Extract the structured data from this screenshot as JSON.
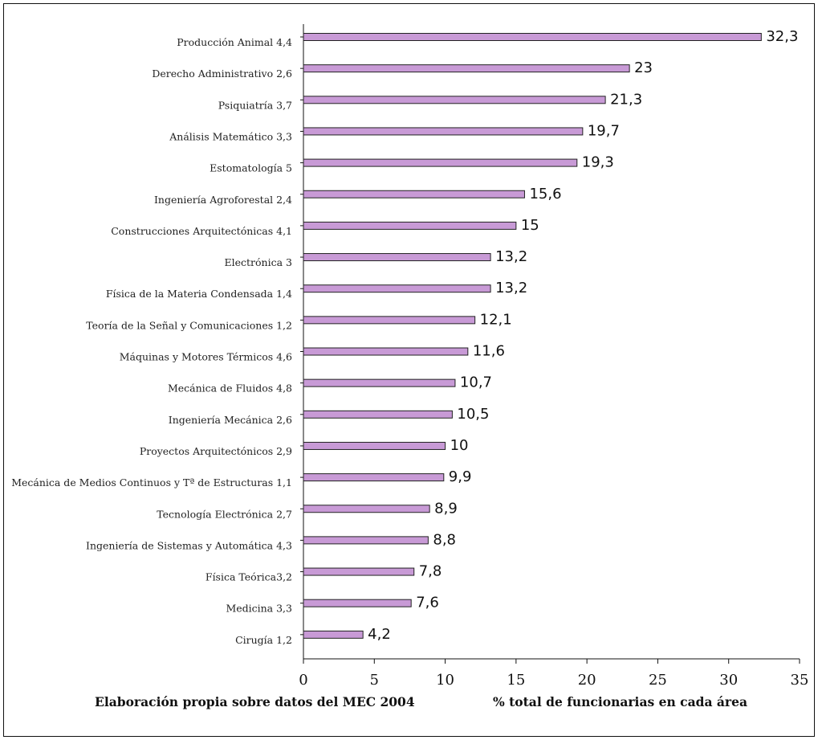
{
  "chart_data": {
    "type": "bar",
    "orientation": "horizontal",
    "categories": [
      "Producción Animal  4,4",
      "Derecho Administrativo 2,6",
      "Psiquiatría  3,7",
      "Análisis Matemático  3,3",
      "Estomatología  5",
      "Ingeniería Agroforestal  2,4",
      "Construcciones Arquitectónicas  4,1",
      "Electrónica  3",
      "Física de la Materia Condensada  1,4",
      "Teoría de la Señal y Comunicaciones  1,2",
      "Máquinas y Motores Térmicos  4,6",
      "Mecánica de Fluidos  4,8",
      "Ingeniería Mecánica  2,6",
      "Proyectos Arquitectónicos  2,9",
      "Mecánica de Medios Continuos y Tª de Estructuras  1,1",
      "Tecnología Electrónica  2,7",
      "Ingeniería de Sistemas y Automática  4,3",
      "Física Teórica3,2",
      "Medicina  3,3",
      "Cirugía  1,2"
    ],
    "values": [
      32.3,
      23,
      21.3,
      19.7,
      19.3,
      15.6,
      15,
      13.2,
      13.2,
      12.1,
      11.6,
      10.7,
      10.5,
      10,
      9.9,
      8.9,
      8.8,
      7.8,
      7.6,
      4.2
    ],
    "value_labels": [
      "32,3",
      "23",
      "21,3",
      "19,7",
      "19,3",
      "15,6",
      "15",
      "13,2",
      "13,2",
      "12,1",
      "11,6",
      "10,7",
      "10,5",
      "10",
      "9,9",
      "8,9",
      "8,8",
      "7,8",
      "7,6",
      "4,2"
    ],
    "xlim": [
      0,
      35
    ],
    "xticks": [
      0,
      5,
      10,
      15,
      20,
      25,
      30,
      35
    ],
    "bar_color": "#c89ad6",
    "bar_edge_color": "#222222",
    "grid": false,
    "legend": "none"
  },
  "footer": {
    "source": "Elaboración propia sobre datos del MEC 2004",
    "xlabel": "% total de funcionarias en cada área"
  }
}
